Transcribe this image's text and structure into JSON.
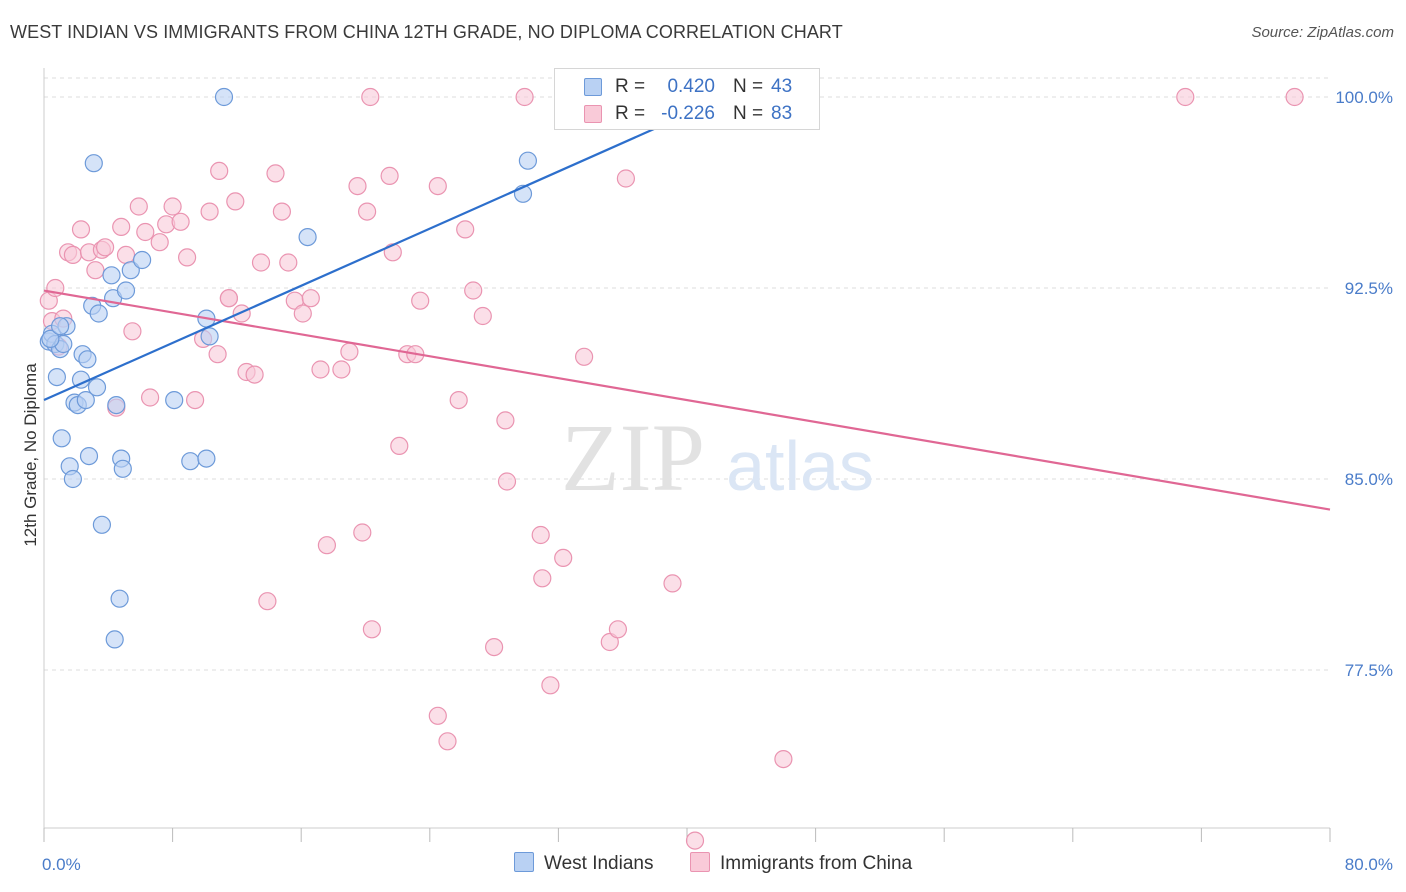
{
  "title": "WEST INDIAN VS IMMIGRANTS FROM CHINA 12TH GRADE, NO DIPLOMA CORRELATION CHART",
  "source": "Source: ZipAtlas.com",
  "watermark": {
    "zip": "ZIP",
    "atlas": "atlas"
  },
  "colors": {
    "blue_fill": "#b9d1f3",
    "blue_stroke": "#6d9ad9",
    "blue_line": "#2d6fcc",
    "pink_fill": "#f9cad8",
    "pink_stroke": "#ea94b1",
    "pink_line": "#e06794",
    "grid": "#dddddd",
    "tick_text": "#4a7cc9"
  },
  "stats": [
    {
      "r_label": "R =",
      "r_value": "0.420",
      "n_label": "N =",
      "n_value": "43",
      "series": "blue"
    },
    {
      "r_label": "R =",
      "r_value": "-0.226",
      "n_label": "N =",
      "n_value": "83",
      "series": "pink"
    }
  ],
  "legend": [
    {
      "label": "West Indians",
      "series": "blue"
    },
    {
      "label": "Immigrants from China",
      "series": "pink"
    }
  ],
  "chart_data": {
    "type": "scatter",
    "title": "WEST INDIAN VS IMMIGRANTS FROM CHINA 12TH GRADE, NO DIPLOMA CORRELATION CHART",
    "xlabel": "",
    "ylabel": "12th Grade, No Diploma",
    "xlim": [
      0,
      80
    ],
    "ylim": [
      70.5,
      101.0
    ],
    "x_ticks": [
      0,
      8,
      16,
      24,
      32,
      40,
      48,
      56,
      64,
      72,
      80
    ],
    "x_tick_labels": [
      {
        "value": 0,
        "label": "0.0%"
      },
      {
        "value": 80,
        "label": "80.0%"
      }
    ],
    "y_ticks": [
      {
        "value": 100.0,
        "label": "100.0%"
      },
      {
        "value": 92.5,
        "label": "92.5%"
      },
      {
        "value": 85.0,
        "label": "85.0%"
      },
      {
        "value": 77.5,
        "label": "77.5%"
      }
    ],
    "grid": true,
    "legend_position": "bottom",
    "series": [
      {
        "name": "West Indians",
        "color": "blue",
        "trend": {
          "x": [
            0,
            41
          ],
          "y": [
            88.1,
            99.6
          ]
        },
        "points": [
          [
            0.3,
            90.4
          ],
          [
            0.5,
            90.7
          ],
          [
            0.7,
            90.3
          ],
          [
            0.8,
            89.0
          ],
          [
            1.0,
            90.1
          ],
          [
            1.1,
            86.6
          ],
          [
            1.2,
            90.3
          ],
          [
            1.4,
            91.0
          ],
          [
            1.6,
            85.5
          ],
          [
            1.8,
            85.0
          ],
          [
            1.9,
            88.0
          ],
          [
            2.1,
            87.9
          ],
          [
            2.3,
            88.9
          ],
          [
            2.4,
            89.9
          ],
          [
            2.6,
            88.1
          ],
          [
            2.7,
            89.7
          ],
          [
            2.8,
            85.9
          ],
          [
            3.0,
            91.8
          ],
          [
            3.1,
            97.4
          ],
          [
            3.3,
            88.6
          ],
          [
            3.4,
            91.5
          ],
          [
            3.6,
            83.2
          ],
          [
            4.2,
            93.0
          ],
          [
            4.3,
            92.1
          ],
          [
            4.4,
            78.7
          ],
          [
            4.5,
            87.9
          ],
          [
            4.7,
            80.3
          ],
          [
            4.8,
            85.8
          ],
          [
            4.9,
            85.4
          ],
          [
            5.1,
            92.4
          ],
          [
            5.4,
            93.2
          ],
          [
            6.1,
            93.6
          ],
          [
            8.1,
            88.1
          ],
          [
            9.1,
            85.7
          ],
          [
            10.1,
            85.8
          ],
          [
            10.1,
            91.3
          ],
          [
            10.3,
            90.6
          ],
          [
            11.2,
            100.0
          ],
          [
            16.4,
            94.5
          ],
          [
            29.8,
            96.2
          ],
          [
            30.1,
            97.5
          ],
          [
            0.4,
            90.5
          ],
          [
            1.0,
            91.0
          ]
        ]
      },
      {
        "name": "Immigrants from China",
        "color": "pink",
        "trend": {
          "x": [
            0,
            80
          ],
          "y": [
            92.4,
            83.8
          ]
        },
        "points": [
          [
            0.3,
            92.0
          ],
          [
            0.5,
            91.2
          ],
          [
            0.7,
            92.5
          ],
          [
            0.9,
            90.2
          ],
          [
            1.2,
            91.3
          ],
          [
            1.5,
            93.9
          ],
          [
            1.8,
            93.8
          ],
          [
            2.3,
            94.8
          ],
          [
            2.8,
            93.9
          ],
          [
            3.2,
            93.2
          ],
          [
            3.6,
            94.0
          ],
          [
            3.8,
            94.1
          ],
          [
            4.5,
            87.8
          ],
          [
            4.8,
            94.9
          ],
          [
            5.1,
            93.8
          ],
          [
            5.5,
            90.8
          ],
          [
            5.9,
            95.7
          ],
          [
            6.3,
            94.7
          ],
          [
            6.6,
            88.2
          ],
          [
            7.2,
            94.3
          ],
          [
            7.6,
            95.0
          ],
          [
            8.0,
            95.7
          ],
          [
            8.5,
            95.1
          ],
          [
            8.9,
            93.7
          ],
          [
            9.4,
            88.1
          ],
          [
            9.9,
            90.5
          ],
          [
            10.3,
            95.5
          ],
          [
            10.8,
            89.9
          ],
          [
            10.9,
            97.1
          ],
          [
            11.5,
            92.1
          ],
          [
            11.9,
            95.9
          ],
          [
            12.3,
            91.5
          ],
          [
            12.6,
            89.2
          ],
          [
            13.1,
            89.1
          ],
          [
            13.5,
            93.5
          ],
          [
            13.9,
            80.2
          ],
          [
            14.4,
            97.0
          ],
          [
            14.8,
            95.5
          ],
          [
            15.2,
            93.5
          ],
          [
            15.6,
            92.0
          ],
          [
            16.1,
            91.5
          ],
          [
            16.6,
            92.1
          ],
          [
            17.2,
            89.3
          ],
          [
            17.6,
            82.4
          ],
          [
            18.5,
            89.3
          ],
          [
            19.0,
            90.0
          ],
          [
            19.5,
            96.5
          ],
          [
            19.8,
            82.9
          ],
          [
            20.1,
            95.5
          ],
          [
            20.4,
            79.1
          ],
          [
            21.5,
            96.9
          ],
          [
            21.7,
            93.9
          ],
          [
            22.1,
            86.3
          ],
          [
            22.6,
            89.9
          ],
          [
            23.1,
            89.9
          ],
          [
            23.4,
            92.0
          ],
          [
            24.5,
            96.5
          ],
          [
            24.5,
            75.7
          ],
          [
            25.1,
            74.7
          ],
          [
            25.8,
            88.1
          ],
          [
            26.2,
            94.8
          ],
          [
            26.7,
            92.4
          ],
          [
            27.3,
            91.4
          ],
          [
            28.0,
            78.4
          ],
          [
            28.7,
            87.3
          ],
          [
            28.8,
            84.9
          ],
          [
            29.9,
            100.0
          ],
          [
            30.9,
            82.8
          ],
          [
            31.0,
            81.1
          ],
          [
            31.5,
            76.9
          ],
          [
            32.3,
            81.9
          ],
          [
            33.0,
            100.0
          ],
          [
            33.6,
            89.8
          ],
          [
            35.2,
            78.6
          ],
          [
            35.7,
            79.1
          ],
          [
            36.2,
            96.8
          ],
          [
            39.1,
            80.9
          ],
          [
            40.5,
            70.8
          ],
          [
            46.0,
            74.0
          ],
          [
            11.5,
            92.1
          ],
          [
            20.3,
            100.0
          ],
          [
            71.0,
            100.0
          ],
          [
            77.8,
            100.0
          ]
        ]
      }
    ]
  }
}
